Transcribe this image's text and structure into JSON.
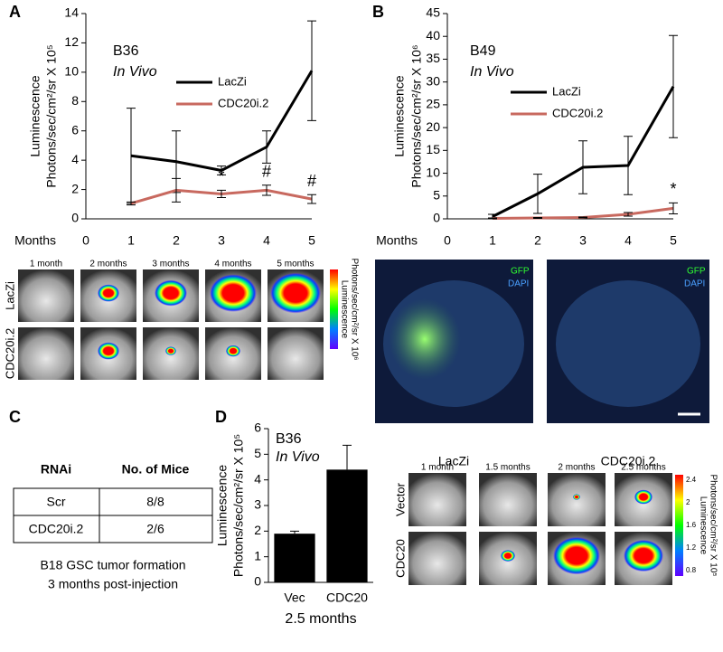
{
  "panel_labels": [
    "A",
    "B",
    "C",
    "D"
  ],
  "chart_data": [
    {
      "type": "line",
      "title": "B36",
      "subtitle": "In Vivo",
      "y_label": [
        "Luminescence",
        "Photons/sec/cm²/sr X 10⁵"
      ],
      "x_label": "Months",
      "xlim": [
        0,
        5
      ],
      "xticks": [
        0,
        1,
        2,
        3,
        4,
        5
      ],
      "ylim": [
        0,
        14
      ],
      "yticks": [
        0,
        2,
        4,
        6,
        8,
        10,
        12,
        14
      ],
      "x": [
        1,
        2,
        3,
        4,
        5
      ],
      "series": [
        {
          "name": "LacZi",
          "color": "#000000",
          "values": [
            4.3,
            3.9,
            3.3,
            4.9,
            10.1
          ],
          "errors": [
            3.25,
            2.1,
            0.3,
            1.1,
            3.4
          ]
        },
        {
          "name": "CDC20i.2",
          "color": "#c8695f",
          "values": [
            1.05,
            1.95,
            1.7,
            1.95,
            1.35
          ],
          "errors": [
            0.1,
            0.8,
            0.25,
            0.35,
            0.3
          ]
        }
      ],
      "annotations": [
        {
          "text": "*",
          "x": 3
        },
        {
          "text": "#",
          "x": 4
        },
        {
          "text": "#",
          "x": 5
        }
      ]
    },
    {
      "type": "line",
      "title": "B49",
      "subtitle": "In Vivo",
      "y_label": [
        "Luminescence",
        "Photons/sec/cm²/sr X 10⁶"
      ],
      "x_label": "Months",
      "xlim": [
        0,
        5
      ],
      "xticks": [
        0,
        1,
        2,
        3,
        4,
        5
      ],
      "ylim": [
        0,
        45
      ],
      "yticks": [
        0,
        5,
        10,
        15,
        20,
        25,
        30,
        35,
        40,
        45
      ],
      "x": [
        1,
        2,
        3,
        4,
        5
      ],
      "series": [
        {
          "name": "LacZi",
          "color": "#000000",
          "values": [
            0.5,
            5.5,
            11.3,
            11.7,
            29
          ],
          "errors": [
            0.5,
            4.3,
            5.8,
            6.4,
            11.2
          ]
        },
        {
          "name": "CDC20i.2",
          "color": "#c8695f",
          "values": [
            0.1,
            0.2,
            0.3,
            1.0,
            2.3
          ],
          "errors": [
            0.1,
            0.1,
            0.1,
            0.4,
            1.2
          ]
        }
      ],
      "annotations": [
        {
          "text": "*",
          "x": 5
        }
      ]
    },
    {
      "type": "bar",
      "title": "B36",
      "subtitle": "In Vivo",
      "y_label": [
        "Luminescence",
        "Photons/sec/cm²/sr X 10⁵"
      ],
      "x_label": "2.5 months",
      "categories": [
        "Vec",
        "CDC20"
      ],
      "values": [
        1.9,
        4.4
      ],
      "errors": [
        0.1,
        0.95
      ],
      "color": "#000000",
      "ylim": [
        0,
        6
      ],
      "yticks": [
        0,
        1,
        2,
        3,
        4,
        5,
        6
      ]
    }
  ],
  "imaging_a": {
    "columns": [
      "1 month",
      "2 months",
      "3 months",
      "4 months",
      "5 months"
    ],
    "rows": [
      "LacZi",
      "CDC20i.2"
    ],
    "colorbar_label": [
      "Luminescence",
      "Photons/sec/cm²/sr X 10⁶"
    ]
  },
  "histology_b": {
    "stains": [
      "GFP",
      "DAPI"
    ],
    "captions": [
      "LacZi",
      "CDC20i.2"
    ]
  },
  "table_c": {
    "header": [
      "RNAi",
      "No. of Mice"
    ],
    "rows": [
      [
        "Scr",
        "8/8"
      ],
      [
        "CDC20i.2",
        "2/6"
      ]
    ],
    "caption": [
      "B18 GSC tumor formation",
      "3 months post-injection"
    ]
  },
  "imaging_d": {
    "columns": [
      "1 month",
      "1.5 months",
      "2 months",
      "2.5 months"
    ],
    "rows": [
      "Vector",
      "CDC20"
    ],
    "colorbar_ticks": [
      "2.4",
      "2",
      "1.6",
      "1.2",
      "0.8"
    ],
    "colorbar_label": [
      "Luminescence",
      "Photons/sec/cm²/sr X 10⁵"
    ]
  }
}
